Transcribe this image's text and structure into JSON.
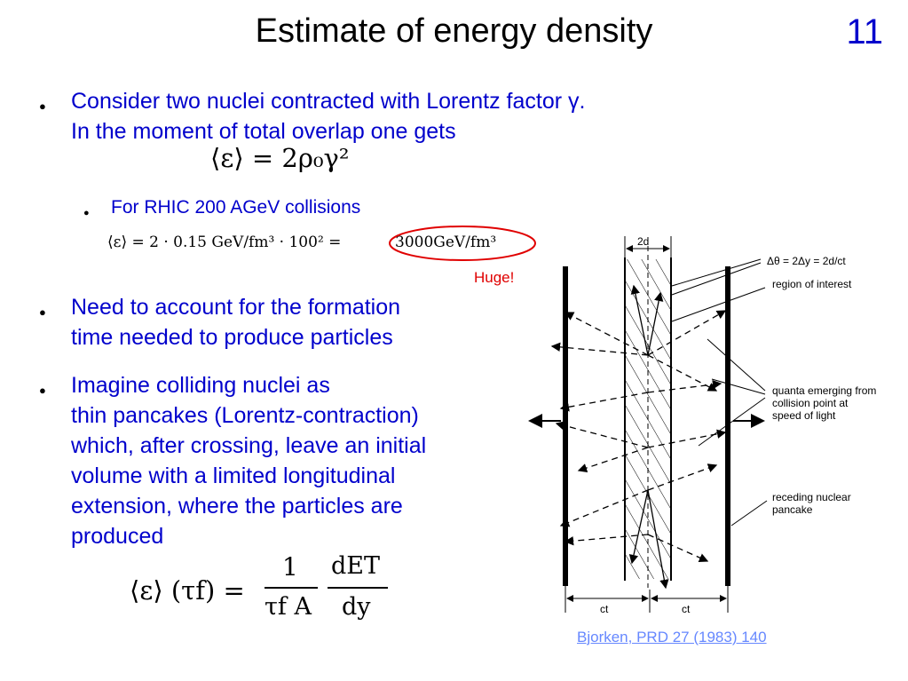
{
  "title": "Estimate of energy density",
  "slide_number": "11",
  "bullets": {
    "b1_line1": "Consider two nuclei contracted with Lorentz factor γ.",
    "b1_line2": "In the moment of total overlap one gets",
    "eq1": "⟨ε⟩ = 2ρ₀γ²",
    "sub1": "For RHIC 200 AGeV collisions",
    "eq2_left": "⟨ε⟩ = 2 · 0.15 GeV/fm³ · 100² =",
    "eq2_right": "3000GeV/fm³",
    "huge": "Huge!",
    "b2_line1": "Need to account for the formation",
    "b2_line2": "time needed to produce particles",
    "b3_line1": "Imagine colliding nuclei as",
    "b3_line2": "thin pancakes (Lorentz-contraction)",
    "b3_line3": "which, after crossing, leave an initial",
    "b3_line4": "volume with a limited longitudinal",
    "b3_line5": "extension, where the particles are",
    "b3_line6": "produced",
    "eq3_lhs": "⟨ε⟩ (τf) =",
    "eq3_num1": "1",
    "eq3_den1": "τf A",
    "eq3_num2": "dET",
    "eq3_den2": "dy"
  },
  "diagram": {
    "width_label": "2d",
    "formula_label": "Δθ = 2Δy = 2d/ct",
    "label_region": "region of interest",
    "label_quanta": "quanta emerging from collision point at speed of light",
    "label_receding": "receding nuclear pancake",
    "ct_left": "ct",
    "ct_right": "ct"
  },
  "reference": "Bjorken, PRD 27 (1983) 140",
  "colors": {
    "text_blue": "#0000cc",
    "accent_red": "#e00000",
    "link": "#6688ff"
  }
}
